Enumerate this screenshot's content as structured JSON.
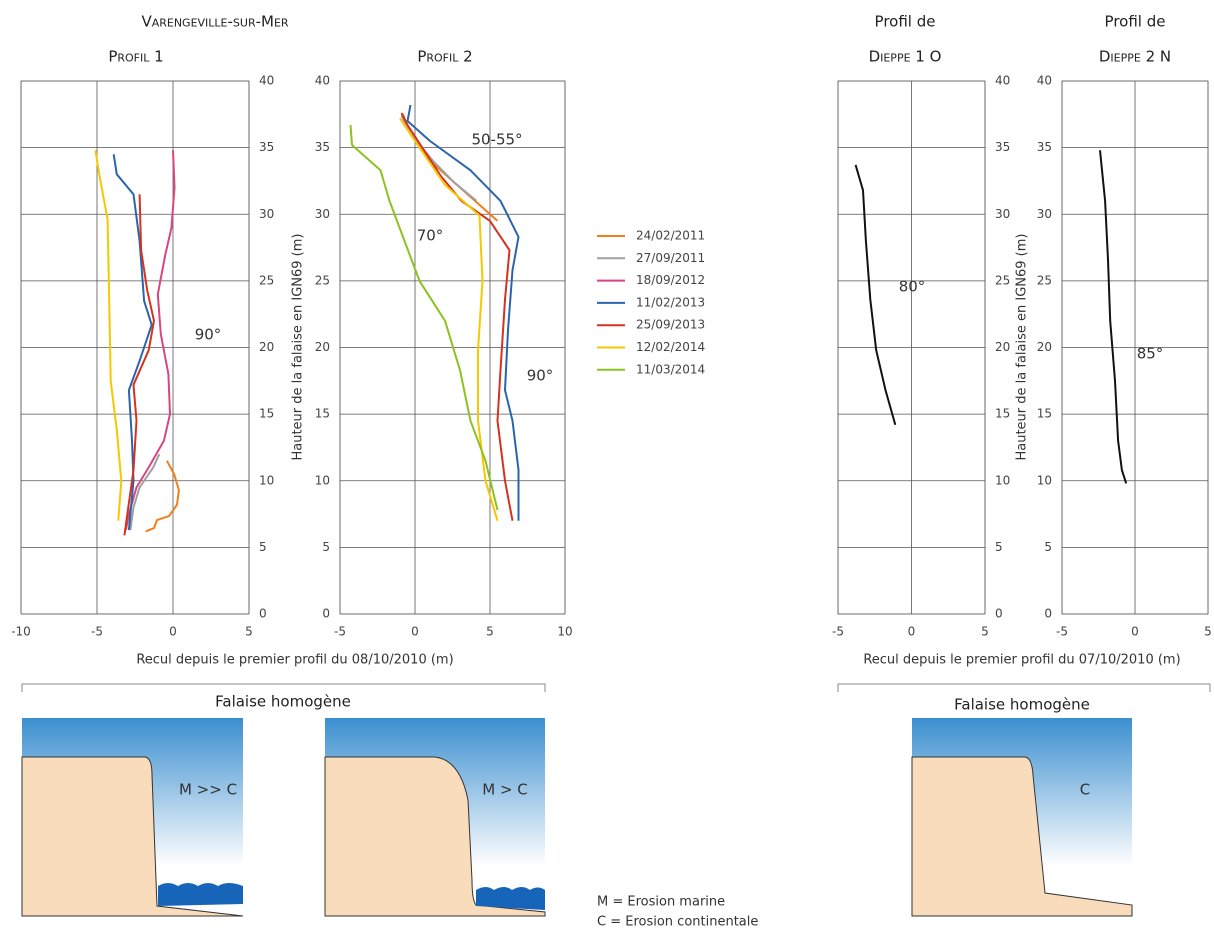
{
  "header": {
    "title": "Varengeville-sur-Mer"
  },
  "xlabels": [
    "Recul depuis le premier profil du 08/10/2010 (m)",
    "Recul depuis le premier profil du 07/10/2010 (m)"
  ],
  "brackets": [
    "Falaise homogène",
    "Falaise homogène"
  ],
  "chart_data": [
    {
      "type": "line",
      "title": "Profil 1",
      "xlim": [
        -10,
        5
      ],
      "xticks": [
        -10,
        -5,
        0,
        5
      ],
      "ylim": [
        0,
        40
      ],
      "yticks": [
        0,
        5,
        10,
        15,
        20,
        25,
        30,
        35,
        40
      ],
      "grid": true,
      "annotations": [
        "90°"
      ],
      "series": [
        {
          "color": "#f07f1f",
          "x": [
            -1.8,
            -1.25,
            -1.05,
            -0.26,
            0.26,
            0.39,
            0.07,
            -0.4
          ],
          "values": [
            6.2,
            6.45,
            7.05,
            7.35,
            8.2,
            9.3,
            10.5,
            11.5
          ]
        },
        {
          "color": "#a0a0a0",
          "x": [
            -2.8,
            -2.6,
            -2.2,
            -1.3,
            -0.9
          ],
          "values": [
            6.3,
            8,
            9.5,
            11,
            12
          ]
        },
        {
          "color": "#d9457f",
          "x": [
            0,
            0.1,
            -0.1,
            -0.5,
            -1,
            -0.8,
            -0.3,
            -0.2,
            -0.6,
            -1.6,
            -2.4,
            -2.9,
            -3.1
          ],
          "values": [
            34.8,
            32,
            29,
            27,
            24,
            21,
            18,
            15,
            13,
            11,
            9.5,
            7.5,
            6.3
          ]
        },
        {
          "color": "#2a64ad",
          "x": [
            -3.9,
            -3.7,
            -2.6,
            -2.2,
            -1.9,
            -1.4,
            -2.2,
            -2.9,
            -2.7,
            -2.6,
            -2.9
          ],
          "values": [
            34.5,
            33,
            31.5,
            28,
            23.5,
            21.7,
            19,
            16.8,
            13,
            10,
            6.3
          ]
        },
        {
          "color": "#d6321f",
          "x": [
            -2.2,
            -2.1,
            -1.7,
            -1.25,
            -1.6,
            -2.6,
            -2.4,
            -2.6,
            -3.2
          ],
          "values": [
            31.5,
            27.3,
            24.3,
            22,
            19.8,
            17.2,
            14.5,
            10.8,
            5.9
          ]
        },
        {
          "color": "#f5c800",
          "x": [
            -5.1,
            -4.9,
            -4.3,
            -4.2,
            -4.1,
            -3.7,
            -3.4,
            -3.6
          ],
          "values": [
            34.8,
            33.3,
            29.6,
            23.6,
            17.5,
            13.8,
            10,
            7
          ]
        }
      ]
    },
    {
      "type": "line",
      "title": "Profil 2",
      "xlim": [
        -5,
        10
      ],
      "xticks": [
        -5,
        0,
        5,
        10
      ],
      "ylim": [
        0,
        40
      ],
      "yticks": [
        0,
        5,
        10,
        15,
        20,
        25,
        30,
        35,
        40
      ],
      "grid": true,
      "ylabel": "Hauteur de la falaise en IGN69 (m)",
      "annotations": [
        "50-55°",
        "70°",
        "90°"
      ],
      "series": [
        {
          "name": "24/02/2011",
          "color": "#f07f1f",
          "x": [
            -0.8,
            -0.3,
            1,
            2.5,
            4,
            5.5
          ],
          "values": [
            37.5,
            36,
            34,
            32.5,
            31,
            29.5
          ]
        },
        {
          "name": "27/09/2011",
          "color": "#a0a0a0",
          "x": [
            -0.9,
            -0.4,
            1.2,
            2.6,
            4.1
          ],
          "values": [
            37.4,
            36.2,
            34,
            32.4,
            31
          ]
        },
        {
          "name": "18/09/2012",
          "color": "#d9457f",
          "x": [],
          "values": []
        },
        {
          "name": "11/02/2013",
          "color": "#2a64ad",
          "x": [
            -0.3,
            -0.5,
            1,
            3.7,
            5.7,
            6.9,
            6.5,
            6.2,
            6,
            6.5,
            6.9,
            6.9
          ],
          "values": [
            38.2,
            37,
            35.5,
            33.3,
            31,
            28.3,
            25.8,
            21.3,
            16.8,
            14.5,
            10.8,
            7
          ]
        },
        {
          "name": "25/09/2013",
          "color": "#d6321f",
          "x": [
            -0.9,
            -0.5,
            1.7,
            3.1,
            5,
            6.3,
            6,
            5.7,
            5.5,
            6,
            6.5
          ],
          "values": [
            37.6,
            36.7,
            32.9,
            31,
            29.5,
            27.3,
            23.6,
            18.3,
            14.5,
            10,
            7
          ]
        },
        {
          "name": "12/02/2014",
          "color": "#f5c800",
          "x": [
            -1,
            0,
            2,
            4.3,
            4.5,
            4.2,
            4.2,
            4.7,
            5.5
          ],
          "values": [
            37.2,
            35.5,
            32.2,
            29.9,
            25,
            19.8,
            14.5,
            10,
            7
          ]
        },
        {
          "name": "11/03/2014",
          "color": "#8dc21f",
          "x": [
            -4.3,
            -4.2,
            -2.3,
            -1.7,
            -0.7,
            0.3,
            2,
            3,
            3.7,
            4.7,
            5.5
          ],
          "values": [
            36.7,
            35.2,
            33.3,
            31,
            28,
            25,
            22,
            18.3,
            14.5,
            11.5,
            7.8
          ]
        }
      ]
    },
    {
      "type": "line",
      "title": "Profil de",
      "subtitle": "Dieppe 1 O",
      "xlim": [
        -5,
        5
      ],
      "xticks": [
        -5,
        0,
        5
      ],
      "ylim": [
        0,
        40
      ],
      "yticks": [
        0,
        5,
        10,
        15,
        20,
        25,
        30,
        35,
        40
      ],
      "grid": true,
      "annotations": [
        "80°"
      ],
      "series": [
        {
          "color": "#111111",
          "x": [
            -3.8,
            -3.3,
            -3.1,
            -2.8,
            -2.4,
            -1.77,
            -1.1
          ],
          "values": [
            33.7,
            31.8,
            28,
            23.6,
            19.8,
            16.8,
            14.2
          ]
        }
      ]
    },
    {
      "type": "line",
      "title": "Profil de",
      "subtitle": "Dieppe 2 N",
      "xlim": [
        -5,
        5
      ],
      "xticks": [
        -5,
        0,
        5
      ],
      "ylim": [
        0,
        40
      ],
      "yticks": [
        0,
        5,
        10,
        15,
        20,
        25,
        30,
        35,
        40
      ],
      "grid": true,
      "ylabel": "Hauteur de la falaise en IGN69 (m)",
      "annotations": [
        "85°"
      ],
      "series": [
        {
          "color": "#111111",
          "x": [
            -2.4,
            -2.05,
            -1.85,
            -1.7,
            -1.37,
            -1.16,
            -0.9,
            -0.6
          ],
          "values": [
            34.8,
            31,
            26.6,
            22,
            17.5,
            13,
            10.8,
            9.8
          ]
        }
      ]
    }
  ],
  "diagrams": [
    {
      "label": "M >> C"
    },
    {
      "label": "M > C"
    },
    {
      "label": "C"
    }
  ],
  "notes": [
    "M = Erosion marine",
    "C = Erosion continentale"
  ]
}
